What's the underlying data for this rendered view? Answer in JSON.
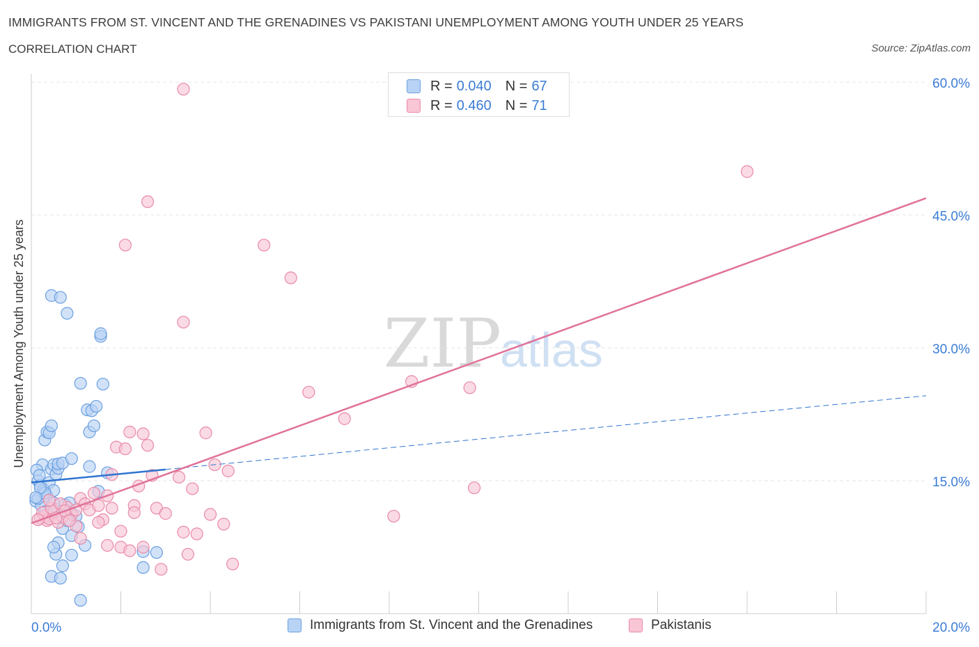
{
  "title": "IMMIGRANTS FROM ST. VINCENT AND THE GRENADINES VS PAKISTANI UNEMPLOYMENT AMONG YOUTH UNDER 25 YEARS",
  "subtitle": "CORRELATION CHART",
  "source": "Source: ZipAtlas.com",
  "watermark": {
    "zip": "ZIP",
    "atlas": "atlas"
  },
  "colors": {
    "blue_fill": "#b8d3f5",
    "blue_stroke": "#6a9fe0",
    "blue_line": "#2f74d0",
    "pink_fill": "#f8c6d5",
    "pink_stroke": "#e98aa8",
    "pink_line": "#e0729a",
    "axis_label": "#3a7bd5",
    "grid": "#e4e4e4"
  },
  "legend": {
    "rows": [
      {
        "r_label": "R =",
        "r_value": "0.040",
        "n_label": "N =",
        "n_value": "67"
      },
      {
        "r_label": "R =",
        "r_value": "0.460",
        "n_label": "N =",
        "n_value": "71"
      }
    ]
  },
  "chart_data": {
    "type": "scatter",
    "title": "IMMIGRANTS FROM ST. VINCENT AND THE GRENADINES VS PAKISTANI UNEMPLOYMENT AMONG YOUTH UNDER 25 YEARS",
    "xlabel": "",
    "ylabel": "Unemployment Among Youth under 25 years",
    "xlim": [
      0,
      20
    ],
    "ylim": [
      0,
      60
    ],
    "x_tick_labels": [
      "0.0%",
      "20.0%"
    ],
    "y_ticks": [
      15,
      30,
      45,
      60
    ],
    "y_tick_labels": [
      "15.0%",
      "30.0%",
      "45.0%",
      "60.0%"
    ],
    "grid": true,
    "series": [
      {
        "name": "Immigrants from St. Vincent and the Grenadines",
        "color": "blue",
        "trend": {
          "x0": 0.0,
          "y0": 14.8,
          "x1": 20.0,
          "y1": 24.6,
          "solid_until_x": 3.0
        },
        "points": [
          [
            0.1,
            12.7
          ],
          [
            0.15,
            15.0
          ],
          [
            0.2,
            14.5
          ],
          [
            0.25,
            16.8
          ],
          [
            0.3,
            13.8
          ],
          [
            0.12,
            16.2
          ],
          [
            0.18,
            15.6
          ],
          [
            0.22,
            12.2
          ],
          [
            0.28,
            14.0
          ],
          [
            0.35,
            13.3
          ],
          [
            0.4,
            14.8
          ],
          [
            0.15,
            13.0
          ],
          [
            0.3,
            19.6
          ],
          [
            0.35,
            20.5
          ],
          [
            0.4,
            20.4
          ],
          [
            0.45,
            21.2
          ],
          [
            0.45,
            16.3
          ],
          [
            0.5,
            16.8
          ],
          [
            0.55,
            15.7
          ],
          [
            0.6,
            16.4
          ],
          [
            0.5,
            13.9
          ],
          [
            0.6,
            16.9
          ],
          [
            0.7,
            17.0
          ],
          [
            0.45,
            35.9
          ],
          [
            0.65,
            35.7
          ],
          [
            0.8,
            33.9
          ],
          [
            1.1,
            26.0
          ],
          [
            1.25,
            23.0
          ],
          [
            1.35,
            22.9
          ],
          [
            1.45,
            23.4
          ],
          [
            1.3,
            20.5
          ],
          [
            1.4,
            21.2
          ],
          [
            1.6,
            25.9
          ],
          [
            1.55,
            31.3
          ],
          [
            1.55,
            31.6
          ],
          [
            0.9,
            17.5
          ],
          [
            1.3,
            16.6
          ],
          [
            1.7,
            15.9
          ],
          [
            0.75,
            12.3
          ],
          [
            0.85,
            12.5
          ],
          [
            0.9,
            11.3
          ],
          [
            1.0,
            11.0
          ],
          [
            1.05,
            9.8
          ],
          [
            0.7,
            9.6
          ],
          [
            0.55,
            11.8
          ],
          [
            0.6,
            8.0
          ],
          [
            0.9,
            8.8
          ],
          [
            1.2,
            7.7
          ],
          [
            0.55,
            6.7
          ],
          [
            0.7,
            5.4
          ],
          [
            0.45,
            4.2
          ],
          [
            0.65,
            4.0
          ],
          [
            1.1,
            1.5
          ],
          [
            0.9,
            6.6
          ],
          [
            0.65,
            11.2
          ],
          [
            0.4,
            11.0
          ],
          [
            0.5,
            12.5
          ],
          [
            0.3,
            13.6
          ],
          [
            2.5,
            7.0
          ],
          [
            2.5,
            5.2
          ],
          [
            2.8,
            6.9
          ],
          [
            1.5,
            13.8
          ],
          [
            0.8,
            10.5
          ],
          [
            0.3,
            11.5
          ],
          [
            0.2,
            14.2
          ],
          [
            0.1,
            13.1
          ],
          [
            0.5,
            7.5
          ]
        ]
      },
      {
        "name": "Pakistanis",
        "color": "pink",
        "trend": {
          "x0": 0.0,
          "y0": 10.2,
          "x1": 20.0,
          "y1": 46.9,
          "solid_until_x": 20.0
        },
        "points": [
          [
            0.2,
            10.8
          ],
          [
            0.3,
            11.0
          ],
          [
            0.35,
            10.5
          ],
          [
            0.4,
            10.7
          ],
          [
            0.5,
            11.5
          ],
          [
            0.6,
            10.3
          ],
          [
            0.7,
            10.9
          ],
          [
            0.8,
            12.0
          ],
          [
            0.9,
            11.2
          ],
          [
            1.0,
            9.9
          ],
          [
            0.25,
            11.4
          ],
          [
            0.45,
            11.9
          ],
          [
            0.55,
            10.8
          ],
          [
            0.65,
            12.4
          ],
          [
            0.75,
            11.6
          ],
          [
            0.85,
            10.5
          ],
          [
            0.15,
            10.6
          ],
          [
            1.1,
            13.0
          ],
          [
            1.2,
            12.4
          ],
          [
            1.3,
            11.7
          ],
          [
            1.4,
            13.6
          ],
          [
            1.5,
            12.2
          ],
          [
            1.6,
            10.6
          ],
          [
            1.7,
            13.3
          ],
          [
            1.8,
            15.7
          ],
          [
            1.9,
            18.8
          ],
          [
            2.1,
            18.6
          ],
          [
            2.2,
            20.5
          ],
          [
            2.3,
            12.2
          ],
          [
            2.4,
            14.4
          ],
          [
            2.5,
            20.3
          ],
          [
            2.6,
            19.0
          ],
          [
            2.7,
            15.6
          ],
          [
            2.8,
            11.9
          ],
          [
            3.0,
            11.3
          ],
          [
            3.3,
            15.4
          ],
          [
            3.4,
            9.2
          ],
          [
            3.6,
            14.1
          ],
          [
            3.7,
            9.0
          ],
          [
            3.9,
            20.4
          ],
          [
            4.0,
            11.2
          ],
          [
            4.1,
            16.8
          ],
          [
            4.3,
            10.1
          ],
          [
            4.4,
            16.1
          ],
          [
            2.0,
            7.5
          ],
          [
            2.2,
            7.1
          ],
          [
            2.5,
            7.5
          ],
          [
            2.0,
            9.3
          ],
          [
            1.7,
            7.7
          ],
          [
            1.5,
            10.3
          ],
          [
            1.1,
            8.5
          ],
          [
            2.3,
            11.4
          ],
          [
            2.9,
            5.0
          ],
          [
            3.5,
            6.7
          ],
          [
            4.5,
            5.6
          ],
          [
            2.1,
            41.6
          ],
          [
            2.6,
            46.5
          ],
          [
            3.4,
            59.2
          ],
          [
            3.4,
            32.9
          ],
          [
            5.2,
            41.6
          ],
          [
            5.8,
            37.9
          ],
          [
            6.2,
            25.0
          ],
          [
            7.0,
            22.0
          ],
          [
            8.5,
            26.2
          ],
          [
            9.8,
            25.5
          ],
          [
            9.9,
            14.2
          ],
          [
            8.1,
            11.0
          ],
          [
            16.0,
            49.9
          ],
          [
            1.0,
            11.7
          ],
          [
            0.4,
            12.8
          ],
          [
            1.8,
            11.9
          ]
        ]
      }
    ]
  },
  "bottom_legend": {
    "series1": "Immigrants from St. Vincent and the Grenadines",
    "series2": "Pakistanis"
  }
}
